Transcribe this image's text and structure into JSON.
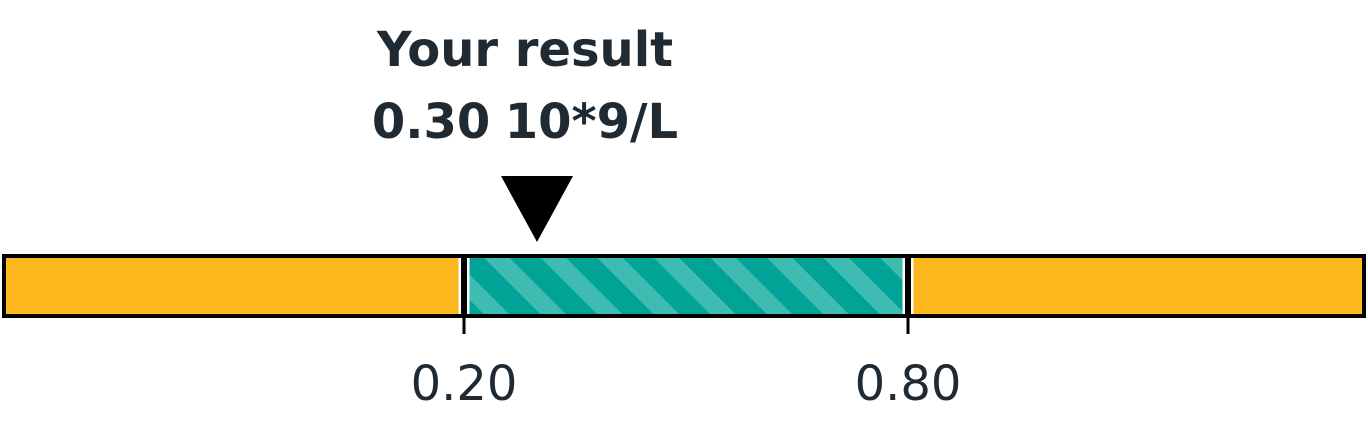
{
  "chart_data": {
    "type": "range-bar",
    "result": {
      "label": "Your result",
      "value": 0.3,
      "value_text": "0.30",
      "unit": "10*9/L"
    },
    "range": {
      "low": 0.2,
      "high": 0.8,
      "low_label": "0.20",
      "high_label": "0.80"
    },
    "segments": [
      {
        "name": "below-range",
        "from": 0.0,
        "to": 0.2,
        "color": "#fdb81e",
        "pattern": "solid"
      },
      {
        "name": "within-range",
        "from": 0.2,
        "to": 0.8,
        "color": "#00a396",
        "pattern": "striped"
      },
      {
        "name": "above-range",
        "from": 0.8,
        "to": 1.0,
        "color": "#fdb81e",
        "pattern": "solid"
      }
    ],
    "colors": {
      "out_of_range": "#fdb81e",
      "in_range": "#00a396",
      "in_range_stripe": "#3fbcb1",
      "outline": "#000000",
      "text": "#1f2a33",
      "marker": "#000000"
    }
  }
}
